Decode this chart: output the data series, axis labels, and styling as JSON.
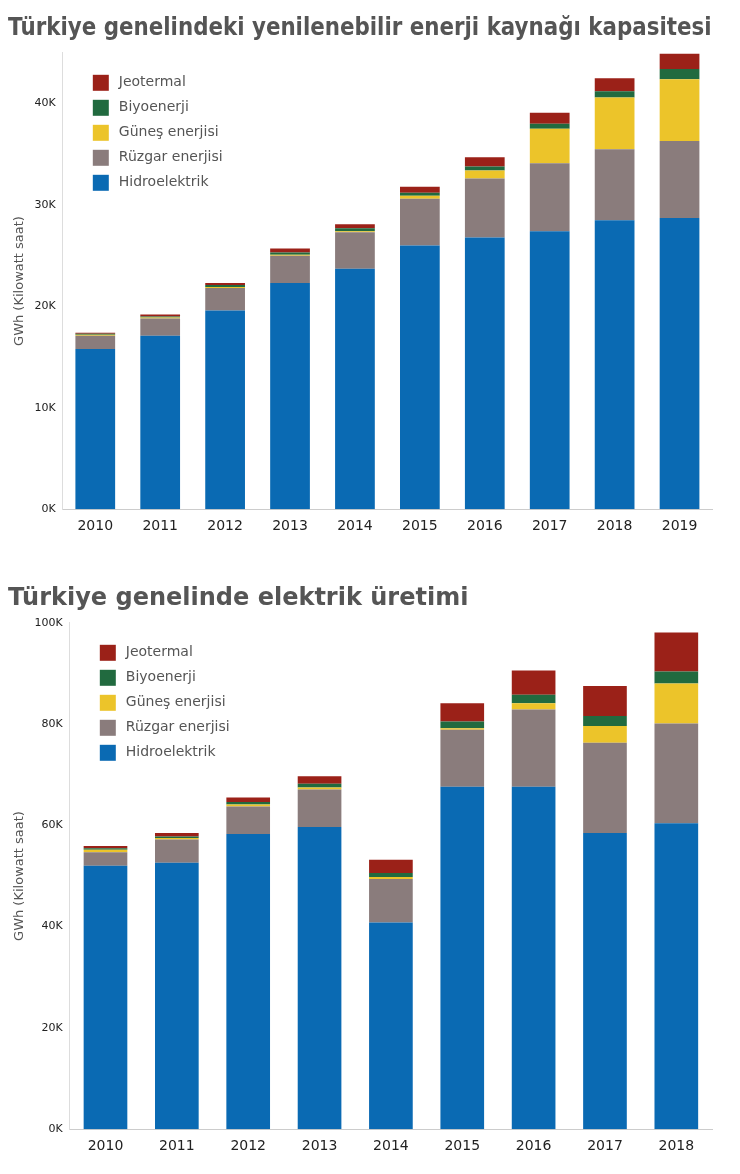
{
  "chart_data": [
    {
      "type": "bar",
      "stacked": true,
      "title": "Türkiye genelindeki yenilenebilir enerji kaynağı kapasitesi",
      "ylabel": "GWh (Kilowatt saat)",
      "categories": [
        "2010",
        "2011",
        "2012",
        "2013",
        "2014",
        "2015",
        "2016",
        "2017",
        "2018",
        "2019"
      ],
      "series": [
        {
          "name": "Hidroelektrik",
          "color": "#0a6ab3",
          "values": [
            15800,
            17100,
            19600,
            22300,
            23700,
            26000,
            26800,
            27400,
            28500,
            28700
          ]
        },
        {
          "name": "Rüzgar enerjisi",
          "color": "#8a7c7c",
          "values": [
            1300,
            1700,
            2200,
            2700,
            3600,
            4600,
            5800,
            6700,
            7000,
            7600
          ]
        },
        {
          "name": "Güneş enerjisi",
          "color": "#ecc42a",
          "values": [
            100,
            100,
            100,
            100,
            100,
            300,
            800,
            3400,
            5100,
            6100
          ]
        },
        {
          "name": "Biyoenerji",
          "color": "#216a3f",
          "values": [
            100,
            100,
            200,
            200,
            300,
            300,
            400,
            500,
            600,
            1000
          ]
        },
        {
          "name": "Jeotermal",
          "color": "#9b2118",
          "values": [
            100,
            200,
            200,
            400,
            400,
            600,
            900,
            1100,
            1300,
            1500
          ]
        }
      ],
      "ylim": [
        0,
        45000
      ],
      "yticks": [
        {
          "value": 0,
          "label": "0K"
        },
        {
          "value": 10000,
          "label": "10K"
        },
        {
          "value": 20000,
          "label": "20K"
        },
        {
          "value": 30000,
          "label": "30K"
        },
        {
          "value": 40000,
          "label": "40K"
        }
      ],
      "grid": false,
      "legend": "top left"
    },
    {
      "type": "bar",
      "stacked": true,
      "title": "Türkiye genelinde elektrik üretimi",
      "ylabel": "GWh (Kilowatt saat)",
      "categories": [
        "2010",
        "2011",
        "2012",
        "2013",
        "2014",
        "2015",
        "2016",
        "2017",
        "2018"
      ],
      "series": [
        {
          "name": "Hidroelektrik",
          "color": "#0a6ab3",
          "values": [
            52000,
            52600,
            58300,
            59700,
            40800,
            67600,
            67600,
            58500,
            60400
          ]
        },
        {
          "name": "Rüzgar enerjisi",
          "color": "#8a7c7c",
          "values": [
            2700,
            4600,
            5400,
            7400,
            8600,
            11300,
            15300,
            17800,
            19700
          ]
        },
        {
          "name": "Güneş enerjisi",
          "color": "#ecc42a",
          "values": [
            500,
            300,
            400,
            400,
            400,
            300,
            1200,
            3300,
            7900
          ]
        },
        {
          "name": "Biyoenerji",
          "color": "#216a3f",
          "values": [
            300,
            300,
            500,
            700,
            800,
            1300,
            1700,
            2000,
            2400
          ]
        },
        {
          "name": "Jeotermal",
          "color": "#9b2118",
          "values": [
            400,
            700,
            900,
            1500,
            2600,
            3600,
            4800,
            5900,
            7700
          ]
        }
      ],
      "ylim": [
        0,
        100000
      ],
      "yticks": [
        {
          "value": 0,
          "label": "0K"
        },
        {
          "value": 20000,
          "label": "20K"
        },
        {
          "value": 40000,
          "label": "40K"
        },
        {
          "value": 60000,
          "label": "60K"
        },
        {
          "value": 80000,
          "label": "80K"
        },
        {
          "value": 100000,
          "label": "100K"
        }
      ],
      "grid": false,
      "legend": "top left"
    }
  ]
}
